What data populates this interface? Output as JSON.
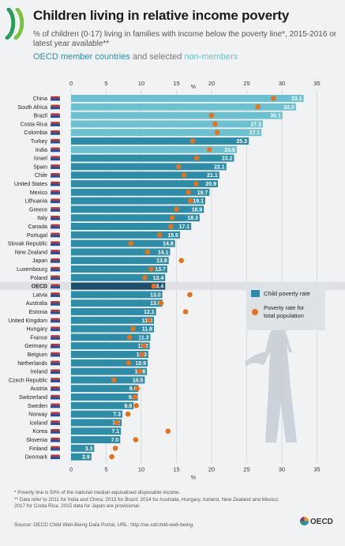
{
  "header": {
    "title": "Children living in relative income poverty",
    "subtitle": "% of children (0-17) living in families with income below the poverty line*, 2015-2016 or latest year available**",
    "legend_oecd": "OECD member countries",
    "legend_and": " and selected ",
    "legend_non": "non-members"
  },
  "chart_data": {
    "type": "bar",
    "orientation": "horizontal",
    "axis_unit_label": "%",
    "xlim": [
      0,
      35
    ],
    "xticks": [
      0,
      5,
      10,
      15,
      20,
      25,
      30,
      35
    ],
    "grid": true,
    "legend_position": "right",
    "legend": [
      {
        "label": "Child poverty rate",
        "color": "#2e8ca7",
        "shape": "square"
      },
      {
        "label": "Poverty rate for total population",
        "color": "#e2731f",
        "shape": "dot"
      }
    ],
    "categories": [
      "China",
      "South Africa",
      "Brazil",
      "Costa Rica",
      "Colombia",
      "Turkey",
      "India",
      "Israel",
      "Spain",
      "Chile",
      "United States",
      "Mexico",
      "Lithuania",
      "Greece",
      "Italy",
      "Canada",
      "Portugal",
      "Slovak Republic",
      "New Zealand",
      "Japan",
      "Luxembourg",
      "Poland",
      "OECD",
      "Latvia",
      "Australia",
      "Estonia",
      "United Kingdom",
      "Hungary",
      "France",
      "Germany",
      "Belgium",
      "Netherlands",
      "Ireland",
      "Czech Republic",
      "Austria",
      "Switzerland",
      "Sweden",
      "Norway",
      "Iceland",
      "Korea",
      "Slovenia",
      "Finland",
      "Denmark"
    ],
    "non_member": [
      true,
      true,
      true,
      true,
      true,
      false,
      true,
      false,
      false,
      false,
      false,
      false,
      false,
      false,
      false,
      false,
      false,
      false,
      false,
      false,
      false,
      false,
      false,
      false,
      false,
      false,
      false,
      false,
      false,
      false,
      false,
      false,
      false,
      false,
      false,
      false,
      false,
      false,
      false,
      false,
      false,
      false,
      false
    ],
    "series": [
      {
        "name": "Child poverty rate",
        "values": [
          33.1,
          32.0,
          30.1,
          27.3,
          27.1,
          25.3,
          23.6,
          23.2,
          22.1,
          21.1,
          20.9,
          19.7,
          19.1,
          18.9,
          18.3,
          17.1,
          15.5,
          14.8,
          14.1,
          13.9,
          13.7,
          13.4,
          13.4,
          13.0,
          13.0,
          12.1,
          11.8,
          11.8,
          11.3,
          11.2,
          11.0,
          10.9,
          10.8,
          10.5,
          9.6,
          9.5,
          8.9,
          7.3,
          7.2,
          7.1,
          7.0,
          3.3,
          2.9
        ]
      },
      {
        "name": "Poverty rate for total population",
        "values": [
          28.8,
          26.6,
          20.0,
          20.5,
          20.8,
          17.3,
          19.7,
          17.9,
          15.3,
          16.1,
          17.8,
          16.7,
          17.0,
          15.0,
          14.4,
          14.2,
          12.6,
          8.5,
          10.9,
          15.7,
          11.4,
          10.5,
          11.8,
          16.9,
          12.8,
          16.3,
          11.1,
          8.8,
          8.3,
          10.4,
          10.1,
          8.2,
          9.8,
          6.1,
          9.4,
          9.1,
          9.3,
          8.1,
          6.5,
          13.8,
          9.2,
          6.3,
          5.8
        ]
      }
    ]
  },
  "footnotes": {
    "line1": "*  Poverty line is 50% of the national median equivalised disposable income.",
    "line2": "** Data refer to 2011 for India and China; 2013 for Brazil; 2014 for Australia, Hungary, Iceland, New Zealand and Mexico;",
    "line3": "   2017 for Costa Rica. 2015 data for Japan are provisional.",
    "source": "Source: OECD Child Well-Being Data Portal, URL: http://oe.cd/child-well-being.",
    "brand": "OECD"
  },
  "colors": {
    "oecd_bar": "#2e8ca7",
    "non_member_bar": "#6cc0d0",
    "oecd_average_bar": "#1f4e6b",
    "dot": "#e2731f",
    "highlight_row": "#dfe1e4"
  }
}
